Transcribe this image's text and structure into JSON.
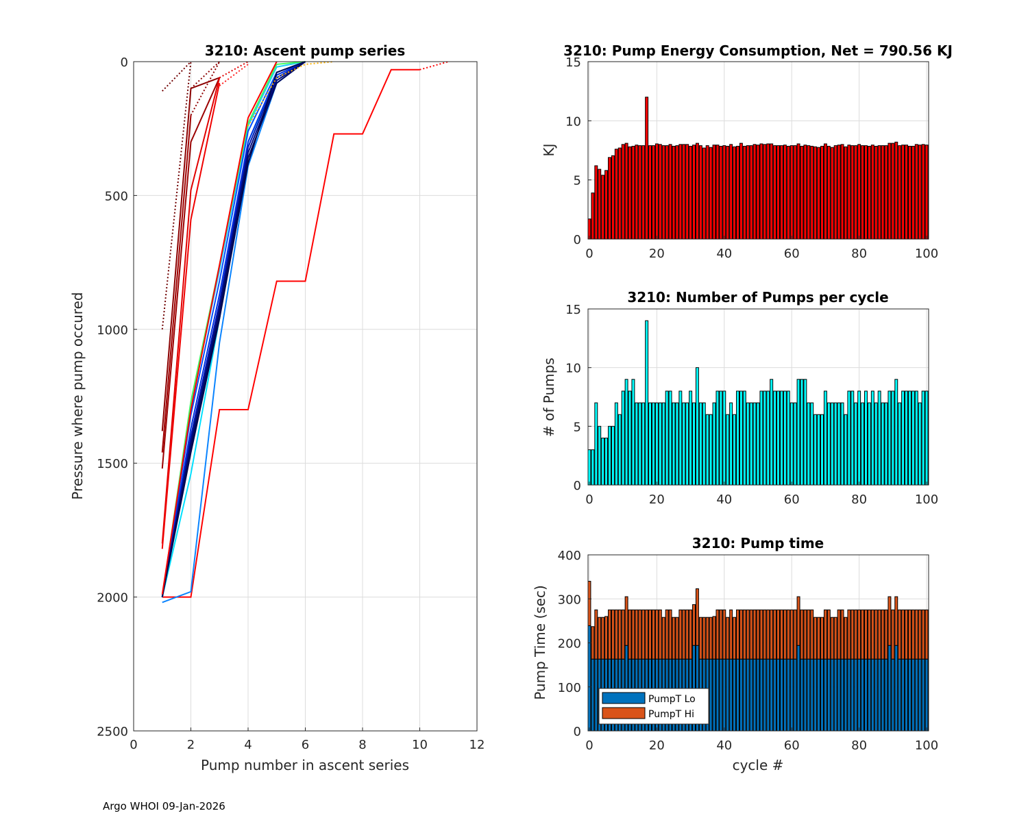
{
  "footer": "Argo WHOI 09-Jan-2026",
  "chart_data": [
    {
      "type": "line",
      "title": "3210: Ascent pump series",
      "xlabel": "Pump number in ascent series",
      "ylabel": "Pressure where pump occured",
      "xlim": [
        0,
        12
      ],
      "ylim": [
        0,
        2500
      ],
      "y_reversed": true,
      "grid": true,
      "xticks": [
        0,
        2,
        4,
        6,
        8,
        10,
        12
      ],
      "yticks": [
        0,
        500,
        1000,
        1500,
        2000,
        2500
      ],
      "series": [
        {
          "color": "#ff0000",
          "style": "solid",
          "points": [
            [
              1,
              2000
            ],
            [
              2,
              2000
            ],
            [
              3,
              1300
            ],
            [
              4,
              1300
            ],
            [
              5,
              820
            ],
            [
              6,
              820
            ],
            [
              7,
              270
            ],
            [
              8,
              270
            ],
            [
              9,
              30
            ],
            [
              10,
              30
            ]
          ]
        },
        {
          "color": "#ff0000",
          "style": "dotted",
          "points": [
            [
              10,
              30
            ],
            [
              11,
              0
            ]
          ]
        },
        {
          "color": "#0a84ff",
          "style": "solid",
          "points": [
            [
              1,
              2020
            ],
            [
              2,
              1980
            ],
            [
              3,
              1050
            ],
            [
              4,
              390
            ],
            [
              5,
              80
            ],
            [
              6,
              0
            ]
          ]
        },
        {
          "color": "#00e0ff",
          "style": "solid",
          "points": [
            [
              1,
              2000
            ],
            [
              2,
              1540
            ],
            [
              3,
              960
            ],
            [
              4,
              300
            ],
            [
              5,
              60
            ],
            [
              6,
              0
            ]
          ]
        },
        {
          "color": "#1ec8ff",
          "style": "solid",
          "points": [
            [
              1,
              2000
            ],
            [
              2,
              1280
            ],
            [
              3,
              780
            ],
            [
              4,
              240
            ],
            [
              5,
              20
            ],
            [
              6,
              0
            ]
          ]
        },
        {
          "color": "#40ff60",
          "style": "solid",
          "points": [
            [
              1,
              2000
            ],
            [
              2,
              1270
            ],
            [
              3,
              760
            ],
            [
              4,
              230
            ],
            [
              5,
              10
            ],
            [
              6,
              0
            ]
          ]
        },
        {
          "color": "#0050ff",
          "style": "solid",
          "points": [
            [
              1,
              2000
            ],
            [
              2,
              1320
            ],
            [
              3,
              820
            ],
            [
              4,
              260
            ],
            [
              5,
              40
            ],
            [
              6,
              0
            ]
          ]
        },
        {
          "color": "#0030e0",
          "style": "solid",
          "points": [
            [
              1,
              2000
            ],
            [
              2,
              1370
            ],
            [
              3,
              870
            ],
            [
              4,
              300
            ],
            [
              5,
              50
            ],
            [
              6,
              0
            ]
          ]
        },
        {
          "color": "#0018b0",
          "style": "solid",
          "points": [
            [
              1,
              2000
            ],
            [
              2,
              1400
            ],
            [
              3,
              900
            ],
            [
              4,
              320
            ],
            [
              5,
              60
            ],
            [
              6,
              0
            ]
          ]
        },
        {
          "color": "#000c80",
          "style": "solid",
          "points": [
            [
              1,
              2000
            ],
            [
              2,
              1420
            ],
            [
              3,
              920
            ],
            [
              4,
              340
            ],
            [
              5,
              70
            ],
            [
              6,
              0
            ]
          ]
        },
        {
          "color": "#000a60",
          "style": "solid",
          "points": [
            [
              1,
              2000
            ],
            [
              2,
              1440
            ],
            [
              3,
              940
            ],
            [
              4,
              360
            ],
            [
              5,
              80
            ],
            [
              6,
              0
            ]
          ]
        },
        {
          "color": "#000850",
          "style": "solid",
          "points": [
            [
              1,
              2000
            ],
            [
              2,
              1460
            ],
            [
              3,
              960
            ],
            [
              4,
              380
            ],
            [
              5,
              40
            ],
            [
              6,
              0
            ]
          ]
        },
        {
          "color": "#ff0000",
          "style": "solid",
          "points": [
            [
              1,
              1990
            ],
            [
              2,
              1300
            ],
            [
              3,
              760
            ],
            [
              4,
              210
            ],
            [
              5,
              0
            ]
          ]
        },
        {
          "color": "#ffb000",
          "style": "dotted",
          "points": [
            [
              4,
              240
            ],
            [
              5,
              60
            ],
            [
              6,
              10
            ],
            [
              7,
              0
            ]
          ]
        },
        {
          "color": "#8b0000",
          "style": "solid",
          "points": [
            [
              1,
              1380
            ],
            [
              2,
              100
            ],
            [
              3,
              60
            ]
          ]
        },
        {
          "color": "#9b0000",
          "style": "solid",
          "points": [
            [
              1,
              1520
            ],
            [
              2,
              300
            ],
            [
              3,
              60
            ]
          ]
        },
        {
          "color": "#a00000",
          "style": "solid",
          "points": [
            [
              1,
              1460
            ],
            [
              2,
              200
            ]
          ]
        },
        {
          "color": "#8b0000",
          "style": "dotted",
          "points": [
            [
              2,
              100
            ],
            [
              3,
              0
            ]
          ]
        },
        {
          "color": "#e00000",
          "style": "solid",
          "points": [
            [
              1,
              1800
            ],
            [
              2,
              480
            ],
            [
              3,
              60
            ]
          ]
        },
        {
          "color": "#f00000",
          "style": "solid",
          "points": [
            [
              1,
              1820
            ],
            [
              2,
              590
            ],
            [
              3,
              80
            ]
          ]
        },
        {
          "color": "#e00000",
          "style": "dotted",
          "points": [
            [
              3,
              60
            ],
            [
              4,
              0
            ]
          ]
        },
        {
          "color": "#ff2020",
          "style": "dotted",
          "points": [
            [
              3,
              90
            ],
            [
              4,
              10
            ]
          ]
        },
        {
          "color": "#700000",
          "style": "dotted",
          "points": [
            [
              1,
              110
            ],
            [
              2,
              0
            ]
          ]
        },
        {
          "color": "#700000",
          "style": "dotted",
          "points": [
            [
              1,
              1000
            ],
            [
              2,
              0
            ]
          ]
        },
        {
          "color": "#900000",
          "style": "dotted",
          "points": [
            [
              2,
              200
            ],
            [
              3,
              0
            ]
          ]
        }
      ]
    },
    {
      "type": "bar",
      "title": "3210: Pump Energy Consumption,  Net = 790.56 KJ",
      "xlabel": "",
      "ylabel": "KJ",
      "xlim": [
        -0.4,
        100.6
      ],
      "ylim": [
        0,
        15
      ],
      "xticks": [
        0,
        20,
        40,
        60,
        80,
        100
      ],
      "yticks": [
        0,
        5,
        10,
        15
      ],
      "color": "#ff0000",
      "values": [
        1.7,
        3.9,
        6.2,
        5.9,
        5.4,
        5.8,
        6.9,
        7.05,
        7.6,
        7.7,
        8.0,
        8.1,
        7.8,
        7.85,
        7.95,
        7.9,
        7.9,
        12.0,
        7.9,
        7.9,
        8.05,
        8.0,
        7.9,
        7.9,
        8.0,
        7.85,
        7.9,
        8.0,
        8.0,
        8.0,
        7.85,
        7.95,
        8.1,
        7.9,
        7.7,
        7.9,
        7.75,
        7.95,
        7.95,
        7.85,
        7.9,
        7.85,
        8.0,
        7.8,
        7.85,
        8.1,
        7.85,
        7.9,
        7.9,
        8.0,
        7.95,
        8.05,
        8.0,
        8.05,
        8.05,
        7.9,
        7.9,
        7.9,
        7.95,
        7.85,
        7.9,
        7.9,
        8.05,
        7.85,
        7.95,
        7.9,
        7.85,
        7.8,
        7.75,
        7.85,
        8.05,
        7.85,
        7.75,
        7.9,
        7.95,
        8.0,
        7.8,
        7.95,
        7.9,
        7.9,
        8.0,
        7.9,
        7.9,
        7.85,
        7.95,
        7.85,
        7.9,
        7.9,
        7.9,
        8.1,
        8.1,
        8.2,
        7.9,
        7.95,
        7.95,
        7.85,
        7.85,
        8.0,
        7.95,
        8.0,
        7.95
      ]
    },
    {
      "type": "bar",
      "title": "3210: Number of Pumps per cycle",
      "xlabel": "",
      "ylabel": "# of Pumps",
      "xlim": [
        -0.4,
        100.6
      ],
      "ylim": [
        0,
        15
      ],
      "xticks": [
        0,
        20,
        40,
        60,
        80,
        100
      ],
      "yticks": [
        0,
        5,
        10,
        15
      ],
      "color": "#00ffff",
      "values": [
        3,
        3,
        7,
        5,
        4,
        4,
        5,
        5,
        7,
        6,
        8,
        9,
        8,
        9,
        7,
        7,
        7,
        14,
        7,
        7,
        7,
        7,
        7,
        8,
        8,
        7,
        7,
        8,
        7,
        7,
        8,
        7,
        10,
        7,
        7,
        6,
        6,
        7,
        8,
        8,
        8,
        6,
        7,
        6,
        8,
        8,
        8,
        7,
        7,
        7,
        7,
        8,
        8,
        8,
        9,
        8,
        8,
        8,
        8,
        8,
        7,
        7,
        9,
        9,
        9,
        7,
        7,
        6,
        6,
        6,
        8,
        7,
        7,
        7,
        7,
        7,
        6,
        8,
        8,
        7,
        8,
        7,
        8,
        7,
        8,
        7,
        8,
        7,
        7,
        8,
        8,
        9,
        7,
        8,
        8,
        8,
        8,
        8,
        7,
        8,
        8
      ]
    },
    {
      "type": "bar",
      "stacked": true,
      "title": "3210: Pump time",
      "xlabel": "cycle #",
      "ylabel": "Pump Time (sec)",
      "xlim": [
        -0.4,
        100.6
      ],
      "ylim": [
        0,
        400
      ],
      "xticks": [
        0,
        20,
        40,
        60,
        80,
        100
      ],
      "yticks": [
        0,
        100,
        200,
        300,
        400
      ],
      "legend": "bottom-left",
      "series": [
        {
          "name": "PumpT Lo",
          "color": "#0072bd",
          "values": [
            239,
            163,
            163,
            163,
            163,
            163,
            163,
            163,
            163,
            163,
            163,
            194,
            163,
            163,
            163,
            163,
            163,
            163,
            163,
            163,
            163,
            163,
            163,
            163,
            163,
            163,
            163,
            163,
            163,
            163,
            163,
            194,
            194,
            163,
            163,
            163,
            163,
            163,
            163,
            163,
            163,
            163,
            163,
            163,
            163,
            163,
            163,
            163,
            163,
            163,
            163,
            163,
            163,
            163,
            163,
            163,
            163,
            163,
            163,
            163,
            163,
            163,
            194,
            163,
            163,
            163,
            163,
            163,
            163,
            163,
            163,
            163,
            163,
            163,
            163,
            163,
            163,
            163,
            163,
            163,
            163,
            163,
            163,
            163,
            163,
            163,
            163,
            163,
            163,
            194,
            163,
            194,
            163,
            163,
            163,
            163,
            163,
            163,
            163,
            163,
            163
          ]
        },
        {
          "name": "PumpT Hi",
          "color": "#d95319",
          "total": [
            340,
            237,
            275,
            258,
            258,
            260,
            275,
            275,
            275,
            275,
            275,
            305,
            275,
            275,
            275,
            275,
            275,
            275,
            275,
            275,
            275,
            275,
            258,
            275,
            275,
            258,
            258,
            275,
            275,
            275,
            275,
            287,
            323,
            258,
            258,
            258,
            258,
            260,
            275,
            275,
            275,
            258,
            275,
            258,
            275,
            275,
            275,
            275,
            275,
            275,
            275,
            275,
            275,
            275,
            275,
            275,
            275,
            275,
            275,
            275,
            275,
            275,
            305,
            275,
            275,
            275,
            275,
            258,
            258,
            258,
            275,
            275,
            258,
            258,
            275,
            275,
            258,
            275,
            275,
            275,
            275,
            275,
            275,
            275,
            275,
            275,
            275,
            275,
            275,
            305,
            275,
            305,
            275,
            275,
            275,
            275,
            275,
            275,
            275,
            275,
            275
          ]
        }
      ]
    }
  ]
}
